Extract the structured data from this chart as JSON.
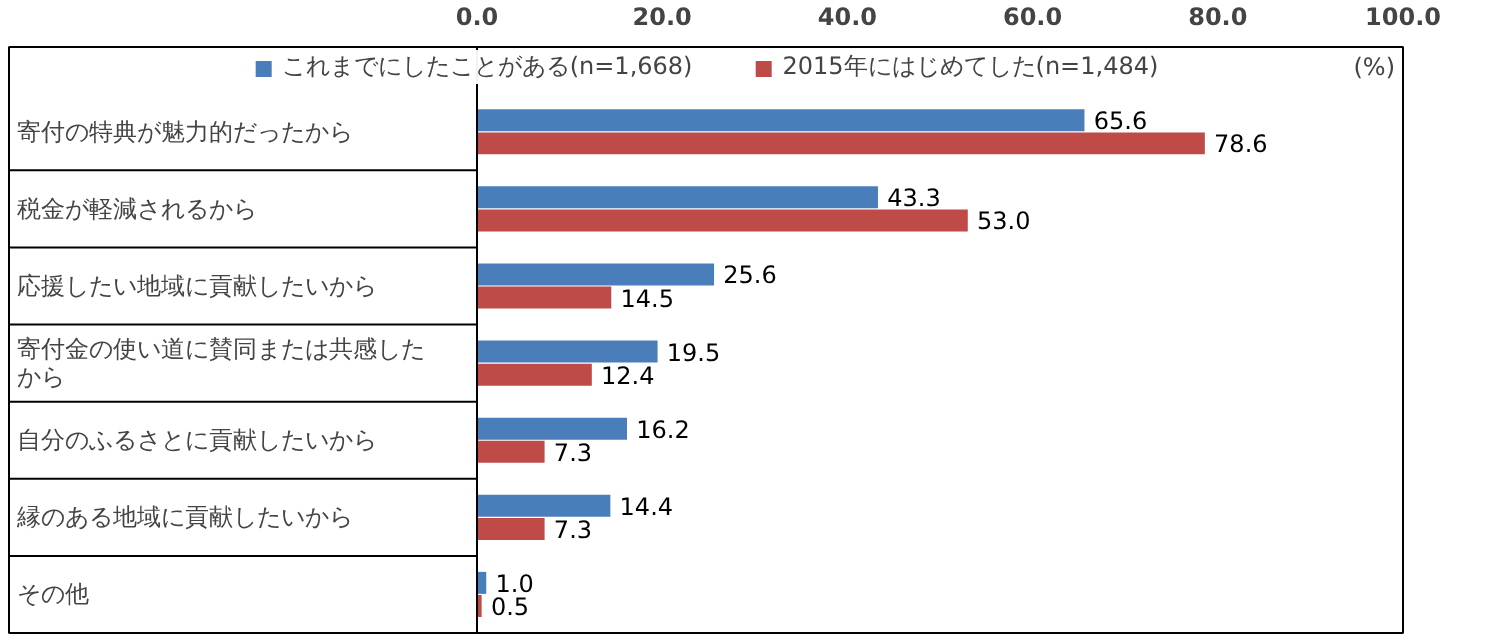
{
  "chart_data": {
    "type": "bar",
    "orientation": "horizontal",
    "categories": [
      "寄付の特典が魅力的だったから",
      "税金が軽減されるから",
      "応援したい地域に貢献したいから",
      "寄付金の使い道に賛同または共感したから",
      "自分のふるさとに貢献したいから",
      "縁のある地域に貢献したいから",
      "その他"
    ],
    "series": [
      {
        "name": "これまでにしたことがある(n=1,668)",
        "color": "#4a7ebb",
        "values": [
          65.6,
          43.3,
          25.6,
          19.5,
          16.2,
          14.4,
          1.0
        ],
        "value_labels": [
          "65.6",
          "43.3",
          "25.6",
          "19.5",
          "16.2",
          "14.4",
          "1.0"
        ]
      },
      {
        "name": "2015年にはじめてした(n=1,484)",
        "color": "#be4b48",
        "values": [
          78.6,
          53.0,
          14.5,
          12.4,
          7.3,
          7.3,
          0.5
        ],
        "value_labels": [
          "78.6",
          "53.0",
          "14.5",
          "12.4",
          "7.3",
          "7.3",
          "0.5"
        ]
      }
    ],
    "xlim": [
      0,
      100
    ],
    "xticks": [
      {
        "value": 0,
        "label": "0.0"
      },
      {
        "value": 20,
        "label": "20.0"
      },
      {
        "value": 40,
        "label": "40.0"
      },
      {
        "value": 60,
        "label": "60.0"
      },
      {
        "value": 80,
        "label": "80.0"
      },
      {
        "value": 100,
        "label": "100.0"
      }
    ],
    "annotations": [
      "(%)"
    ],
    "legend": "top",
    "grid": false
  }
}
